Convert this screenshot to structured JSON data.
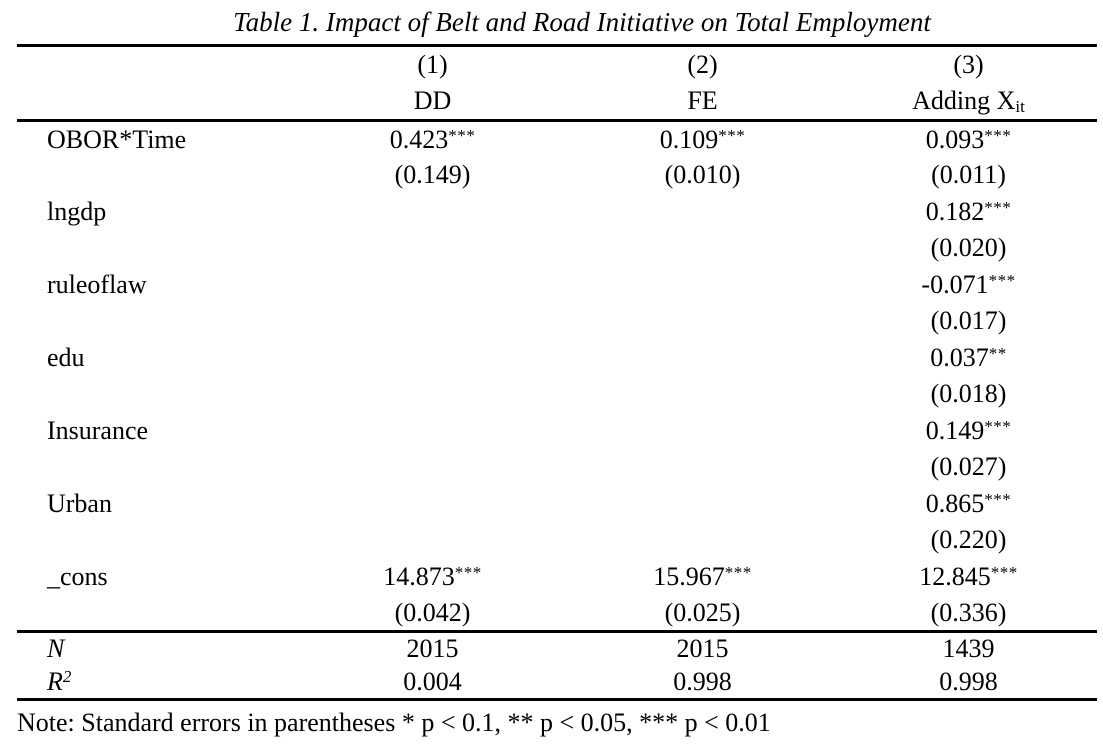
{
  "table": {
    "title": "Table 1. Impact of Belt and Road Initiative on Total Employment",
    "columns": {
      "numbers": [
        "(1)",
        "(2)",
        "(3)"
      ],
      "model_labels": [
        "DD",
        "FE"
      ],
      "model3_base": "Adding X",
      "model3_sub": "it"
    },
    "coef_rows": [
      {
        "label": "OBOR*Time",
        "cells": [
          {
            "coef": "0.423",
            "stars": "***",
            "se": "(0.149)"
          },
          {
            "coef": "0.109",
            "stars": "***",
            "se": "(0.010)"
          },
          {
            "coef": "0.093",
            "stars": "***",
            "se": "(0.011)"
          }
        ]
      },
      {
        "label": "lngdp",
        "cells": [
          {
            "coef": "",
            "stars": "",
            "se": ""
          },
          {
            "coef": "",
            "stars": "",
            "se": ""
          },
          {
            "coef": "0.182",
            "stars": "***",
            "se": "(0.020)"
          }
        ]
      },
      {
        "label": "ruleoflaw",
        "cells": [
          {
            "coef": "",
            "stars": "",
            "se": ""
          },
          {
            "coef": "",
            "stars": "",
            "se": ""
          },
          {
            "coef": "-0.071",
            "stars": "***",
            "se": "(0.017)"
          }
        ]
      },
      {
        "label": "edu",
        "cells": [
          {
            "coef": "",
            "stars": "",
            "se": ""
          },
          {
            "coef": "",
            "stars": "",
            "se": ""
          },
          {
            "coef": "0.037",
            "stars": "**",
            "se": "(0.018)"
          }
        ]
      },
      {
        "label": "Insurance",
        "cells": [
          {
            "coef": "",
            "stars": "",
            "se": ""
          },
          {
            "coef": "",
            "stars": "",
            "se": ""
          },
          {
            "coef": "0.149",
            "stars": "***",
            "se": "(0.027)"
          }
        ]
      },
      {
        "label": "Urban",
        "cells": [
          {
            "coef": "",
            "stars": "",
            "se": ""
          },
          {
            "coef": "",
            "stars": "",
            "se": ""
          },
          {
            "coef": "0.865",
            "stars": "***",
            "se": "(0.220)"
          }
        ]
      },
      {
        "label": "_cons",
        "cells": [
          {
            "coef": "14.873",
            "stars": "***",
            "se": "(0.042)"
          },
          {
            "coef": "15.967",
            "stars": "***",
            "se": "(0.025)"
          },
          {
            "coef": "12.845",
            "stars": "***",
            "se": "(0.336)"
          }
        ]
      }
    ],
    "stats_rows": [
      {
        "label": "N",
        "label_sup": "",
        "values": [
          "2015",
          "2015",
          "1439"
        ]
      },
      {
        "label": "R",
        "label_sup": "2",
        "values": [
          "0.004",
          "0.998",
          "0.998"
        ]
      }
    ],
    "note": "Note: Standard errors in parentheses * p < 0.1, ** p < 0.05, *** p < 0.01"
  }
}
